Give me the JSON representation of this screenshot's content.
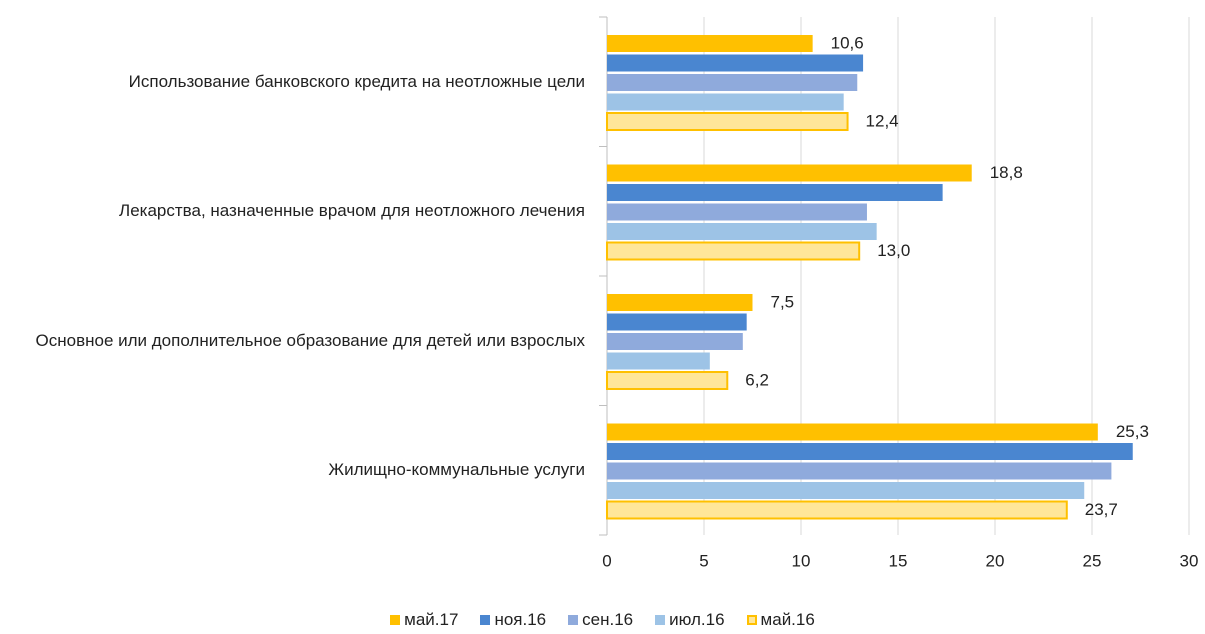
{
  "chart_data": {
    "type": "bar",
    "orientation": "horizontal",
    "categories": [
      "Использование банковского кредита на неотложные цели",
      "Лекарства, назначенные врачом для неотложного лечения",
      "Основное или дополнительное образование для детей или взрослых",
      "Жилищно-коммунальные услуги"
    ],
    "series": [
      {
        "name": "май.17",
        "color": "#FFC000",
        "values": [
          10.6,
          18.8,
          7.5,
          25.3
        ],
        "value_labels": [
          "10,6",
          "18,8",
          "7,5",
          "25,3"
        ]
      },
      {
        "name": "ноя.16",
        "color": "#4A86D0",
        "values": [
          13.2,
          17.3,
          7.2,
          27.1
        ]
      },
      {
        "name": "сен.16",
        "color": "#8FAADC",
        "values": [
          12.9,
          13.4,
          7.0,
          26.0
        ]
      },
      {
        "name": "июл.16",
        "color": "#9DC3E6",
        "values": [
          12.2,
          13.9,
          5.3,
          24.6
        ]
      },
      {
        "name": "май.16",
        "color": "#FFE699",
        "border": "#FFC000",
        "values": [
          12.4,
          13.0,
          6.2,
          23.7
        ],
        "value_labels": [
          "12,4",
          "13,0",
          "6,2",
          "23,7"
        ]
      }
    ],
    "xlim": [
      0,
      30
    ],
    "xticks": [
      0,
      5,
      10,
      15,
      20,
      25,
      30
    ],
    "grid": true,
    "legend": "bottom"
  }
}
